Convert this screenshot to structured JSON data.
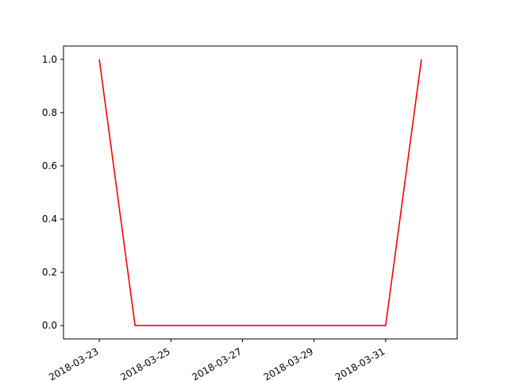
{
  "chart_data": {
    "type": "line",
    "title": "",
    "xlabel": "",
    "ylabel": "",
    "x": [
      "2018-03-23",
      "2018-03-24",
      "2018-03-25",
      "2018-03-26",
      "2018-03-27",
      "2018-03-28",
      "2018-03-29",
      "2018-03-30",
      "2018-03-31",
      "2018-04-01"
    ],
    "series": [
      {
        "values": [
          1.0,
          0.0,
          0.0,
          0.0,
          0.0,
          0.0,
          0.0,
          0.0,
          0.0,
          1.0
        ],
        "color": "#ff0000"
      }
    ],
    "xlim": [
      "2018-03-22",
      "2018-04-02"
    ],
    "ylim": [
      -0.05,
      1.05
    ],
    "xticks": [
      "2018-03-23",
      "2018-03-25",
      "2018-03-27",
      "2018-03-29",
      "2018-03-31"
    ],
    "yticks": [
      "0.0",
      "0.2",
      "0.4",
      "0.6",
      "0.8",
      "1.0"
    ],
    "grid": false,
    "legend": "none",
    "xtick_rotation": "30 degrees"
  }
}
